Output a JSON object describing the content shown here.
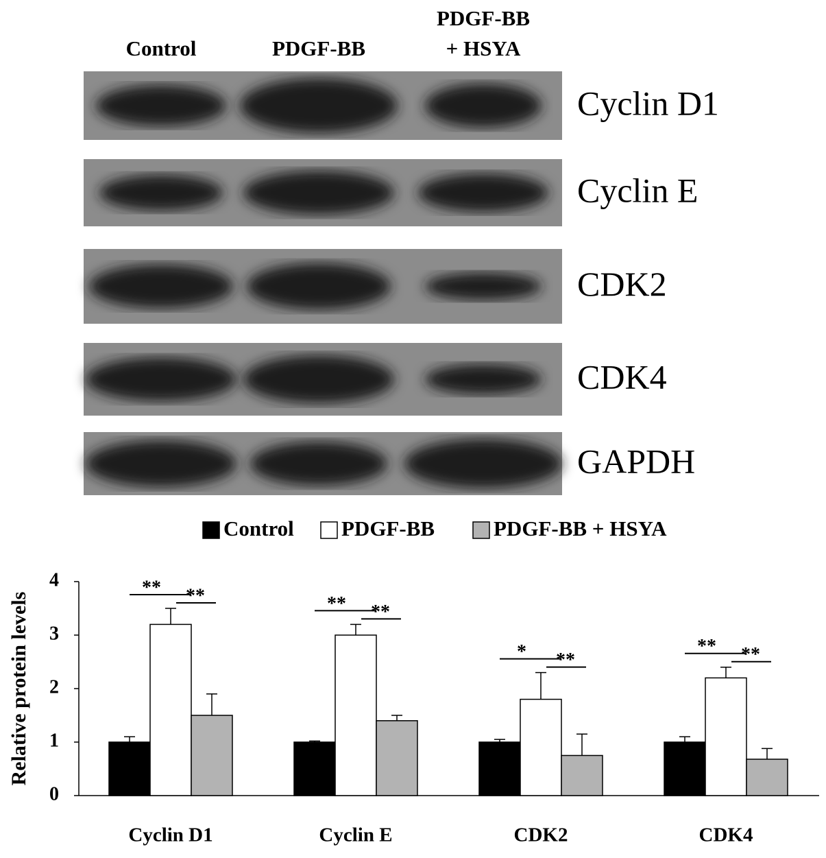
{
  "blot": {
    "lanes": [
      "Control",
      "PDGF-BB",
      [
        "PDGF-BB",
        "+ HSYA"
      ]
    ],
    "proteins": [
      "Cyclin D1",
      "Cyclin E",
      "CDK2",
      "CDK4",
      "GAPDH"
    ]
  },
  "chart_data": {
    "type": "bar",
    "y_label": "Relative protein levels",
    "categories": [
      "Cyclin D1",
      "Cyclin E",
      "CDK2",
      "CDK4"
    ],
    "series": [
      {
        "name": "Control",
        "color": "#000000",
        "values": [
          1.0,
          1.0,
          1.0,
          1.0
        ],
        "errors": [
          0.1,
          0.02,
          0.05,
          0.1
        ]
      },
      {
        "name": "PDGF-BB",
        "color": "#ffffff",
        "values": [
          3.2,
          3.0,
          1.8,
          2.2
        ],
        "errors": [
          0.3,
          0.2,
          0.5,
          0.2
        ]
      },
      {
        "name": "PDGF-BB + HSYA",
        "color": "#b3b3b3",
        "values": [
          1.5,
          1.4,
          0.75,
          0.68
        ],
        "errors": [
          0.4,
          0.1,
          0.4,
          0.2
        ]
      }
    ],
    "significance": [
      [
        "**",
        "**"
      ],
      [
        "**",
        "**"
      ],
      [
        "*",
        "**"
      ],
      [
        "**",
        "**"
      ]
    ],
    "ylim": [
      0,
      4
    ],
    "yticks": [
      0,
      1,
      2,
      3,
      4
    ]
  }
}
